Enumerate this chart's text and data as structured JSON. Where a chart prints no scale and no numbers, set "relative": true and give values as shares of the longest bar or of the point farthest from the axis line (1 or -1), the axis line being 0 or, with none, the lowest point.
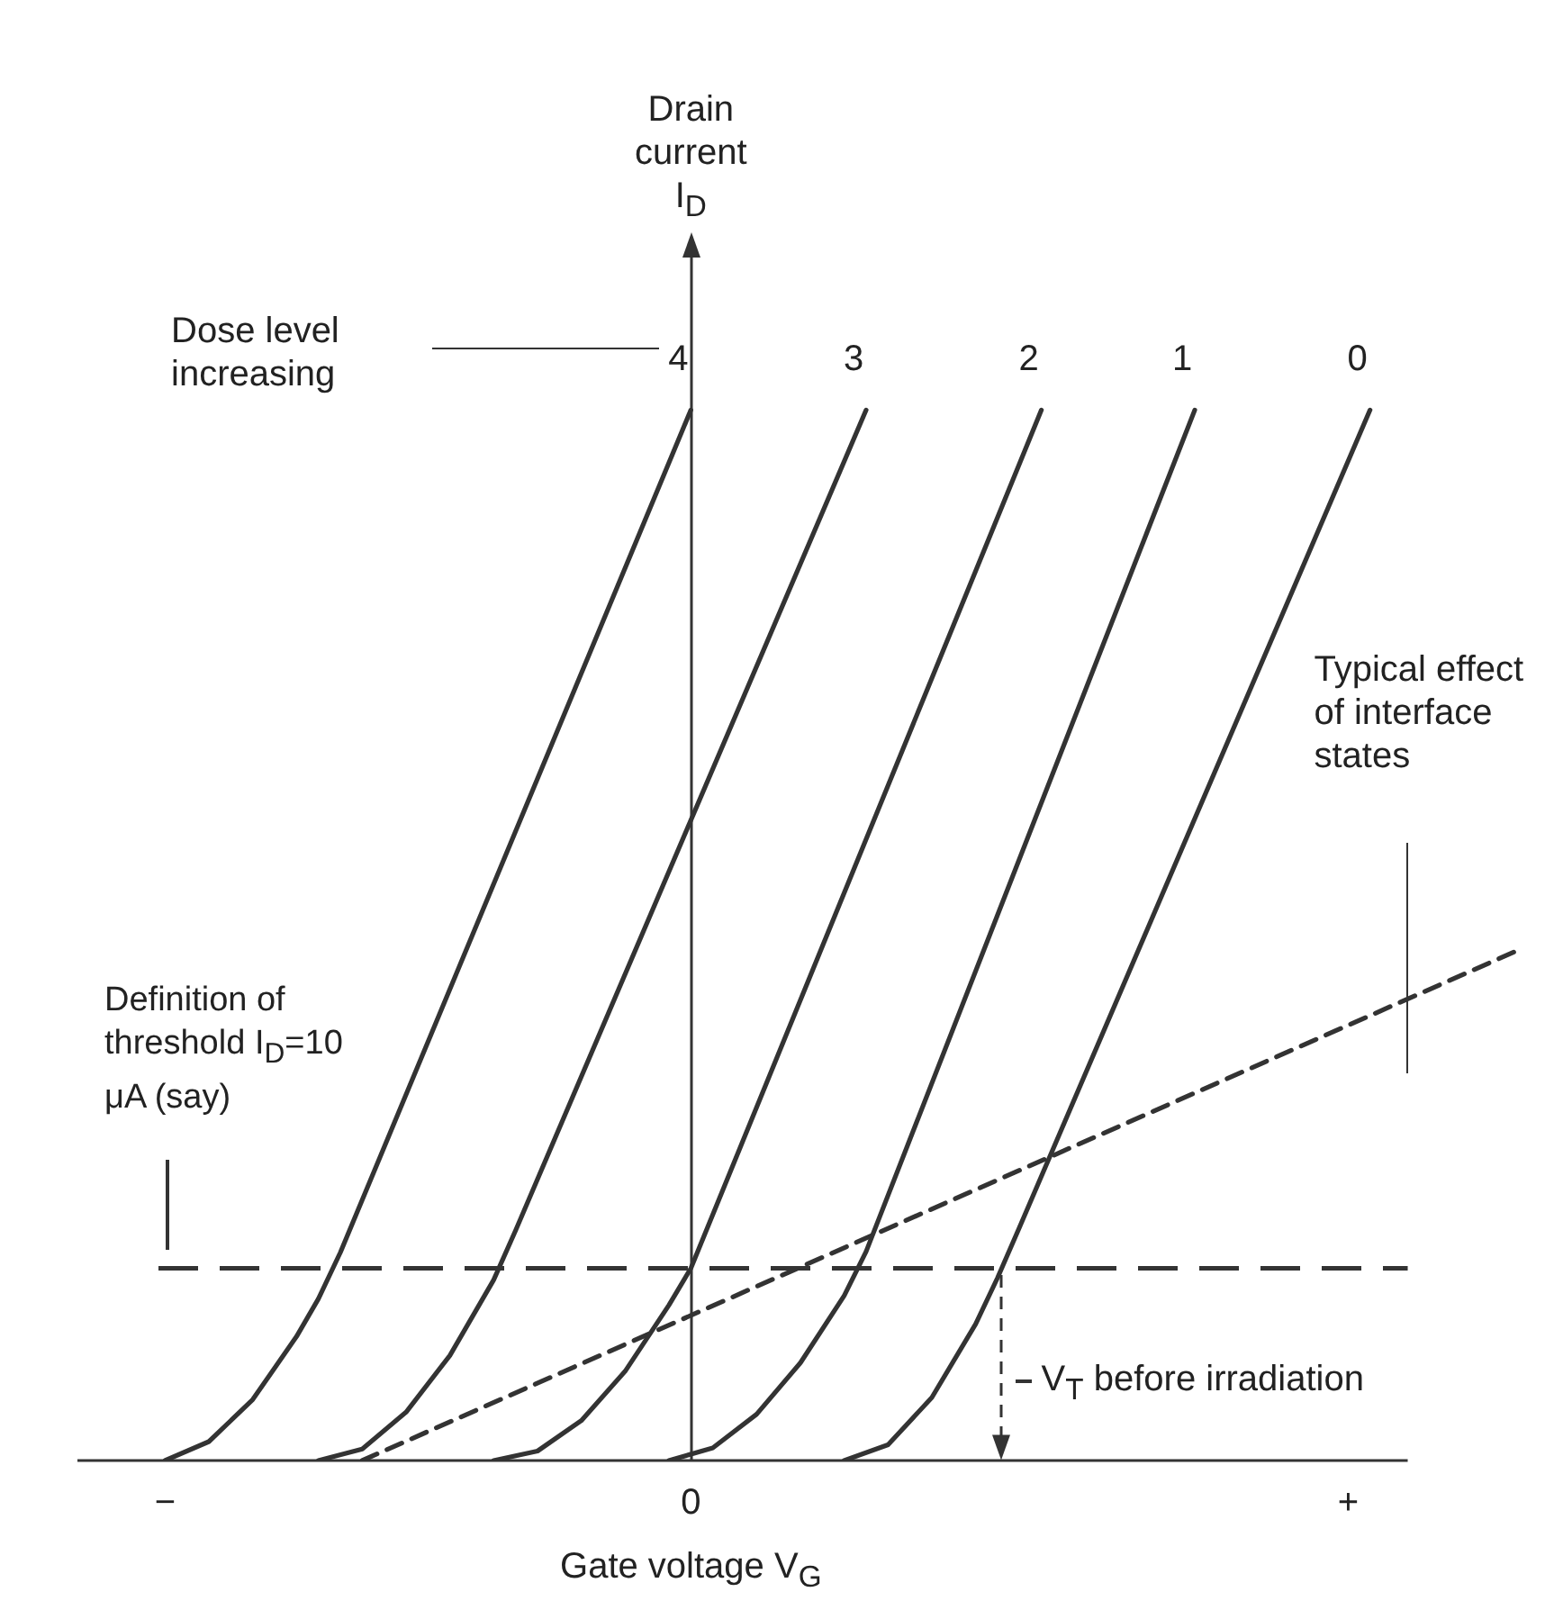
{
  "chart_data": {
    "type": "line",
    "relative": true,
    "xlabel": "Gate voltage V$_{G}$",
    "categories": [
      null,
      null,
      null,
      null,
      "−",
      null,
      null,
      null,
      null,
      null,
      null,
      null,
      null,
      null,
      null,
      null,
      null,
      null,
      null,
      null,
      null,
      null,
      null,
      null,
      null,
      null,
      null,
      null,
      "0",
      null,
      null,
      null,
      null,
      null,
      null,
      null,
      null,
      null,
      null,
      null,
      null,
      null,
      null,
      null,
      null,
      null,
      null,
      null,
      null,
      null,
      null,
      null,
      null,
      null,
      null,
      null,
      null,
      null,
      "+",
      null,
      null,
      null,
      null,
      null,
      null,
      null,
      null
    ],
    "grid": false,
    "legend": false,
    "marker": "none",
    "line_style": "solid",
    "series": [
      {
        "name": "4",
        "color": "#333333",
        "values": [
          null,
          null,
          null,
          null,
          0,
          null,
          0.018,
          null,
          0.058,
          null,
          0.118,
          0.154,
          0.198,
          null,
          null,
          null,
          null,
          null,
          null,
          null,
          null,
          null,
          null,
          null,
          null,
          null,
          null,
          null,
          1,
          null,
          null,
          null,
          null,
          null,
          null,
          null,
          null,
          null,
          null,
          null,
          null,
          null,
          null,
          null,
          null,
          null,
          null,
          null,
          null,
          null,
          null,
          null,
          null,
          null,
          null,
          null,
          null,
          null,
          null,
          null,
          null,
          null,
          null,
          null,
          null,
          null,
          null
        ]
      },
      {
        "name": "3",
        "color": "#333333",
        "values": [
          null,
          null,
          null,
          null,
          null,
          null,
          null,
          null,
          null,
          null,
          null,
          0,
          null,
          0.011,
          null,
          0.046,
          null,
          0.1,
          null,
          0.172,
          0.219,
          null,
          null,
          null,
          null,
          null,
          null,
          null,
          null,
          null,
          null,
          null,
          null,
          null,
          null,
          null,
          1,
          null,
          null,
          null,
          null,
          null,
          null,
          null,
          null,
          null,
          null,
          null,
          null,
          null,
          null,
          null,
          null,
          null,
          null,
          null,
          null,
          null,
          null,
          null,
          null,
          null,
          null,
          null,
          null,
          null,
          null
        ]
      },
      {
        "name": "2",
        "color": "#333333",
        "values": [
          null,
          null,
          null,
          null,
          null,
          null,
          null,
          null,
          null,
          null,
          null,
          null,
          null,
          null,
          null,
          null,
          null,
          null,
          null,
          0,
          null,
          0.009,
          null,
          0.038,
          null,
          0.085,
          null,
          0.148,
          0.183,
          null,
          null,
          null,
          null,
          null,
          null,
          null,
          null,
          null,
          null,
          null,
          null,
          null,
          null,
          null,
          1,
          null,
          null,
          null,
          null,
          null,
          null,
          null,
          null,
          null,
          null,
          null,
          null,
          null,
          null,
          null,
          null,
          null,
          null,
          null,
          null,
          null,
          null
        ]
      },
      {
        "name": "1",
        "color": "#333333",
        "values": [
          null,
          null,
          null,
          null,
          null,
          null,
          null,
          null,
          null,
          null,
          null,
          null,
          null,
          null,
          null,
          null,
          null,
          null,
          null,
          null,
          null,
          null,
          null,
          null,
          null,
          null,
          null,
          0,
          null,
          0.012,
          null,
          0.044,
          null,
          0.093,
          null,
          0.157,
          0.199,
          null,
          null,
          null,
          null,
          null,
          null,
          null,
          null,
          null,
          null,
          null,
          null,
          null,
          null,
          1,
          null,
          null,
          null,
          null,
          null,
          null,
          null,
          null,
          null,
          null,
          null,
          null,
          null,
          null,
          null
        ]
      },
      {
        "name": "0",
        "color": "#333333",
        "values": [
          null,
          null,
          null,
          null,
          null,
          null,
          null,
          null,
          null,
          null,
          null,
          null,
          null,
          null,
          null,
          null,
          null,
          null,
          null,
          null,
          null,
          null,
          null,
          null,
          null,
          null,
          null,
          null,
          null,
          null,
          null,
          null,
          null,
          null,
          null,
          0,
          null,
          0.015,
          null,
          0.06,
          null,
          0.13,
          0.174,
          0.222,
          null,
          null,
          null,
          null,
          null,
          null,
          null,
          null,
          null,
          null,
          null,
          null,
          null,
          null,
          null,
          1,
          null,
          null,
          null,
          null,
          null,
          null,
          null
        ]
      },
      {
        "color": "#333333",
        "line_style": "dashed",
        "values": [
          null,
          null,
          null,
          null,
          null,
          null,
          null,
          null,
          null,
          null,
          null,
          null,
          null,
          0,
          null,
          null,
          null,
          null,
          null,
          null,
          null,
          null,
          null,
          null,
          null,
          null,
          null,
          null,
          null,
          null,
          null,
          null,
          null,
          null,
          null,
          null,
          null,
          null,
          null,
          null,
          null,
          null,
          null,
          null,
          null,
          null,
          null,
          null,
          null,
          null,
          null,
          null,
          null,
          null,
          null,
          null,
          null,
          null,
          null,
          null,
          null,
          null,
          null,
          null,
          null,
          null,
          0.488
        ]
      }
    ],
    "ref_lines": [
      {
        "axis": "y",
        "value": 0.183,
        "line_style": "dashed",
        "color": "#333333"
      }
    ],
    "annotations": [
      "Dose level increasing",
      "Definition of threshold I$_{D}$=10 μA (say)",
      "Typical effect of interface states",
      "V$_{T}$ before irradiation",
      "Drain current I$_{D}$"
    ]
  }
}
